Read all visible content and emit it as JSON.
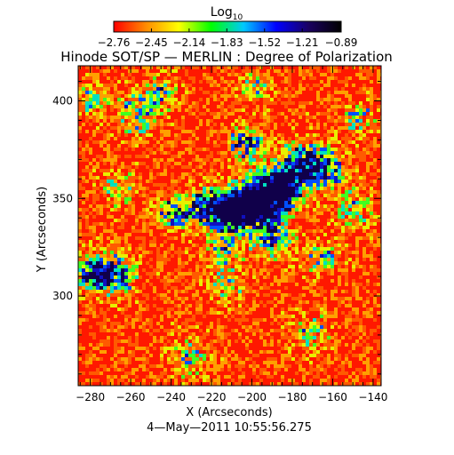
{
  "chart_data": {
    "type": "heatmap",
    "title": "Hinode SOT/SP — MERLIN : Degree of Polarization",
    "xlabel": "X (Arcseconds)",
    "ylabel": "Y (Arcseconds)",
    "timestamp": "4—May—2011 10:55:56.275",
    "colorbar": {
      "label_base": "Log",
      "label_sub": "10",
      "range": [
        -2.76,
        -0.89
      ],
      "tick_values": [
        -2.76,
        -2.45,
        -2.14,
        -1.83,
        -1.52,
        -1.21,
        -0.89
      ],
      "tick_labels": [
        "−2.76",
        "−2.45",
        "−2.14",
        "−1.83",
        "−1.52",
        "−1.21",
        "−0.89"
      ],
      "colors": [
        "#ff0000",
        "#ff8c00",
        "#ffff00",
        "#00ff00",
        "#00c8ff",
        "#0000ff",
        "#1a0060",
        "#000000"
      ]
    },
    "xlim": [
      -286,
      -136
    ],
    "ylim": [
      254,
      418
    ],
    "x_ticks": [
      -280,
      -260,
      -240,
      -220,
      -200,
      -180,
      -160,
      -140
    ],
    "x_tick_labels": [
      "−280",
      "−260",
      "−240",
      "−220",
      "−200",
      "−180",
      "−160",
      "−140"
    ],
    "y_ticks": [
      300,
      350,
      400
    ],
    "y_tick_labels": [
      "300",
      "350",
      "400"
    ]
  }
}
